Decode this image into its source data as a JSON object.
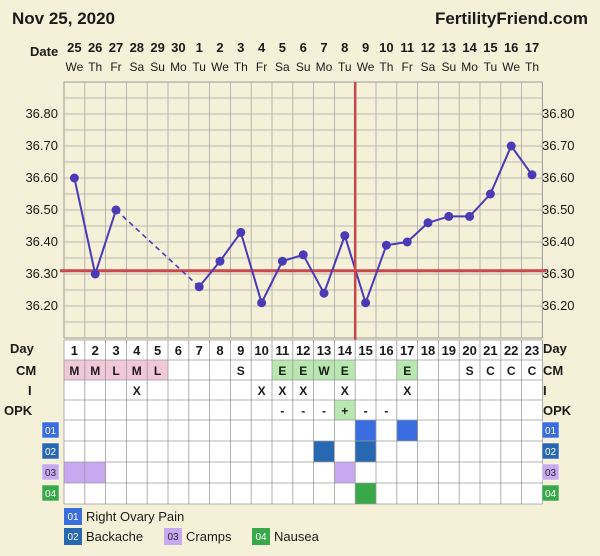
{
  "header": {
    "date": "Nov 25, 2020",
    "site": "FertilityFriend.com"
  },
  "labels": {
    "date": "Date",
    "day": "Day",
    "cm": "CM",
    "i": "I",
    "opk": "OPK"
  },
  "colors": {
    "background": "#f5f0d8",
    "line": "#4a3ab8",
    "coverline": "#c9484c",
    "ovulation": "#c9484c",
    "menses": "#f0c8d8",
    "egg_white": "#b8e8b0",
    "opk_positive": "#b8e8b0",
    "ovary_pain": "#3a6ee0",
    "backache": "#2868b0",
    "cramps": "#c8a8f0",
    "nausea": "#38a848"
  },
  "chart_data": {
    "type": "line",
    "dates": [
      "25",
      "26",
      "27",
      "28",
      "29",
      "30",
      "1",
      "2",
      "3",
      "4",
      "5",
      "6",
      "7",
      "8",
      "9",
      "10",
      "11",
      "12",
      "13",
      "14",
      "15",
      "16",
      "17"
    ],
    "weekdays": [
      "We",
      "Th",
      "Fr",
      "Sa",
      "Su",
      "Mo",
      "Tu",
      "We",
      "Th",
      "Fr",
      "Sa",
      "Su",
      "Mo",
      "Tu",
      "We",
      "Th",
      "Fr",
      "Sa",
      "Su",
      "Mo",
      "Tu",
      "We",
      "Th"
    ],
    "cycle_days": [
      "1",
      "2",
      "3",
      "4",
      "5",
      "6",
      "7",
      "8",
      "9",
      "10",
      "11",
      "12",
      "13",
      "14",
      "15",
      "16",
      "17",
      "18",
      "19",
      "20",
      "21",
      "22",
      "23"
    ],
    "temperatures": [
      36.6,
      36.3,
      36.5,
      null,
      null,
      null,
      36.26,
      36.34,
      36.43,
      36.21,
      36.34,
      36.36,
      36.24,
      36.42,
      36.21,
      36.39,
      36.4,
      36.46,
      36.48,
      36.48,
      36.55,
      36.7,
      36.61
    ],
    "missing_bridge": [
      2,
      6
    ],
    "y_ticks": [
      "36.80",
      "36.70",
      "36.60",
      "36.50",
      "36.40",
      "36.30",
      "36.20"
    ],
    "ylim": [
      36.1,
      36.9
    ],
    "coverline": 36.31,
    "ovulation_index": 14,
    "cm": [
      "M",
      "M",
      "L",
      "M",
      "L",
      "",
      "",
      "",
      "S",
      "",
      "E",
      "E",
      "W",
      "E",
      "",
      "",
      "E",
      "",
      "",
      "S",
      "C",
      "C",
      "C"
    ],
    "cm_marked": [
      0,
      1,
      2,
      3,
      4,
      10,
      11,
      12,
      13,
      16
    ],
    "intercourse": [
      "",
      "",
      "",
      "X",
      "",
      "",
      "",
      "",
      "",
      "X",
      "X",
      "X",
      "",
      "X",
      "",
      "",
      "X",
      "",
      "",
      "",
      "",
      "",
      ""
    ],
    "opk": [
      "",
      "",
      "",
      "",
      "",
      "",
      "",
      "",
      "",
      "",
      "-",
      "-",
      "-",
      "+",
      "-",
      "-",
      "",
      "",
      "",
      "",
      "",
      "",
      ""
    ],
    "opk_positive_index": 13,
    "symptoms": [
      {
        "code": "01",
        "name": "Right Ovary Pain",
        "days": [
          14,
          16
        ],
        "color_key": "ovary_pain"
      },
      {
        "code": "02",
        "name": "Backache",
        "days": [
          12,
          14
        ],
        "color_key": "backache"
      },
      {
        "code": "03",
        "name": "Cramps",
        "days": [
          0,
          1,
          13
        ],
        "color_key": "cramps"
      },
      {
        "code": "04",
        "name": "Nausea",
        "days": [
          14
        ],
        "color_key": "nausea"
      }
    ]
  }
}
